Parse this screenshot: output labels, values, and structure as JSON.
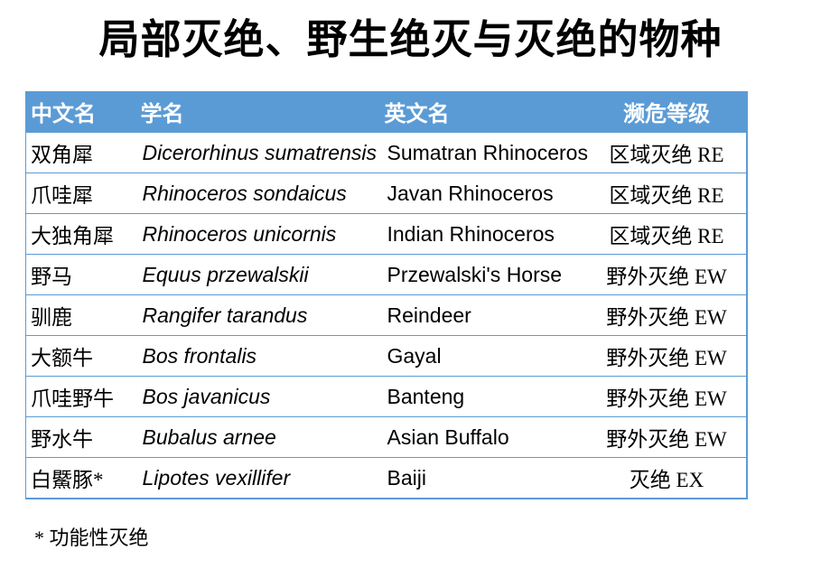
{
  "title": "局部灭绝、野生绝灭与灭绝的物种",
  "table": {
    "columns": [
      "中文名",
      "学名",
      "英文名",
      "濒危等级"
    ],
    "rows": [
      {
        "cn": "双角犀",
        "sci": "Dicerorhinus sumatrensis",
        "en": "Sumatran Rhinoceros",
        "status": "区域灭绝 RE"
      },
      {
        "cn": "爪哇犀",
        "sci": "Rhinoceros sondaicus",
        "en": "Javan Rhinoceros",
        "status": "区域灭绝 RE"
      },
      {
        "cn": "大独角犀",
        "sci": "Rhinoceros unicornis",
        "en": "Indian Rhinoceros",
        "status": "区域灭绝 RE"
      },
      {
        "cn": "野马",
        "sci": "Equus przewalskii",
        "en": "Przewalski's Horse",
        "status": "野外灭绝 EW"
      },
      {
        "cn": "驯鹿",
        "sci": "Rangifer tarandus",
        "en": "Reindeer",
        "status": "野外灭绝 EW"
      },
      {
        "cn": "大额牛",
        "sci": "Bos frontalis",
        "en": "Gayal",
        "status": "野外灭绝 EW"
      },
      {
        "cn": "爪哇野牛",
        "sci": "Bos javanicus",
        "en": "Banteng",
        "status": "野外灭绝 EW"
      },
      {
        "cn": "野水牛",
        "sci": "Bubalus arnee",
        "en": "Asian Buffalo",
        "status": "野外灭绝 EW"
      },
      {
        "cn": "白鱀豚*",
        "sci": "Lipotes vexillifer",
        "en": "Baiji",
        "status": "灭绝 EX"
      }
    ]
  },
  "footnote": "* 功能性灭绝",
  "colors": {
    "header_bg": "#5B9BD5",
    "header_text": "#FFFFFF",
    "border": "#5B9BD5",
    "text": "#000000",
    "background": "#FFFFFF"
  }
}
